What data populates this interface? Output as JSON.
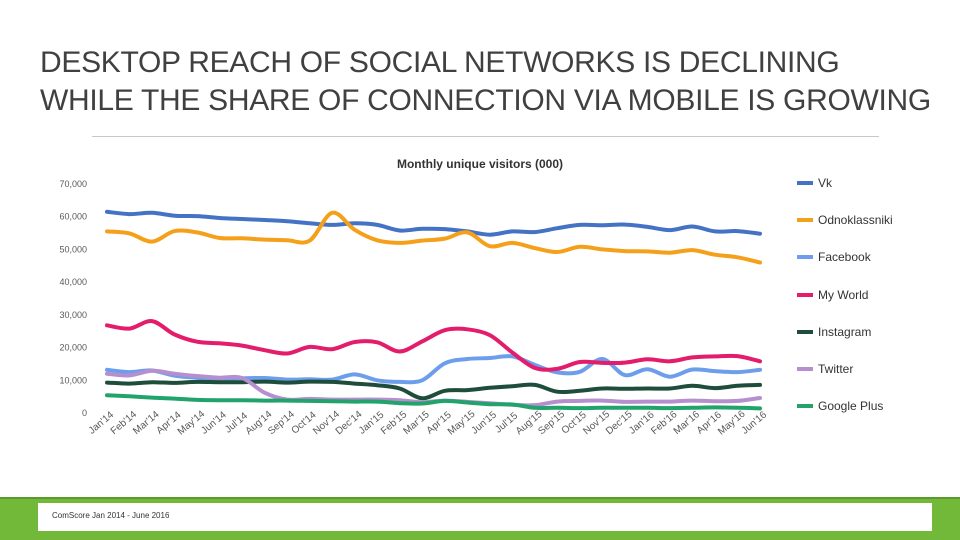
{
  "slide": {
    "title": "DESKTOP REACH OF SOCIAL NETWORKS IS DECLINING WHILE THE SHARE OF CONNECTION VIA MOBILE IS GROWING",
    "source": "ComScore Jan 2014 - June 2016"
  },
  "colors": {
    "Vk": "#4472c4",
    "Odnoklassnikі": "#f5a01a",
    "Facebook": "#6d9eeb",
    "My World": "#e31c6b",
    "Instagram": "#1e4d3b",
    "Twitter": "#b68fcf",
    "Google Plus": "#21a36b",
    "footer": "#72b93a"
  },
  "chart_data": {
    "type": "line",
    "title": "Monthly unique visitors (000)",
    "xlabel": "",
    "ylabel": "",
    "ylim": [
      0,
      70000
    ],
    "yticks": [
      "0",
      "10,000",
      "20,000",
      "30,000",
      "40,000",
      "50,000",
      "60,000",
      "70,000"
    ],
    "grid": false,
    "legend_position": "right",
    "categories": [
      "Jan'14",
      "Feb'14",
      "Mar'14",
      "Apr'14",
      "May'14",
      "Jun'14",
      "Jul'14",
      "Aug'14",
      "Sep'14",
      "Oct'14",
      "Nov'14",
      "Dec'14",
      "Jan'15",
      "Feb'15",
      "Mar'15",
      "Apr'15",
      "May'15",
      "Jun'15",
      "Jul'15",
      "Aug'15",
      "Sep'15",
      "Oct'15",
      "Nov'15",
      "Dec'15",
      "Jan'16",
      "Feb'16",
      "Mar'16",
      "Apr'16",
      "May'16",
      "Jun'16"
    ],
    "series": [
      {
        "name": "Vk",
        "values": [
          61500,
          60800,
          61200,
          60300,
          60200,
          59600,
          59300,
          59000,
          58600,
          58000,
          57500,
          58000,
          57500,
          55800,
          56300,
          56200,
          55500,
          54500,
          55500,
          55300,
          56500,
          57500,
          57400,
          57600,
          56900,
          55900,
          57000,
          55500,
          55600,
          54800
        ]
      },
      {
        "name": "Odnoklassnikі",
        "values": [
          55500,
          54900,
          52400,
          55600,
          55200,
          53500,
          53400,
          53000,
          52800,
          52700,
          61200,
          56000,
          52800,
          52000,
          52700,
          53300,
          55200,
          51000,
          52000,
          50400,
          49200,
          50800,
          50000,
          49500,
          49400,
          49000,
          49800,
          48400,
          47600,
          46000
        ]
      },
      {
        "name": "Facebook",
        "values": [
          13200,
          12500,
          13000,
          11400,
          10800,
          10500,
          10600,
          10700,
          10200,
          10300,
          10200,
          11800,
          10000,
          9500,
          10000,
          15200,
          16500,
          16800,
          17300,
          14700,
          12400,
          12600,
          16500,
          11600,
          13400,
          11100,
          13300,
          12800,
          12500,
          13200
        ]
      },
      {
        "name": "My World",
        "values": [
          26800,
          25800,
          28100,
          24000,
          21800,
          21300,
          20600,
          19200,
          18200,
          20200,
          19500,
          21700,
          21600,
          18800,
          21900,
          25300,
          25600,
          23800,
          18500,
          13800,
          13500,
          15600,
          15300,
          15400,
          16400,
          15800,
          17000,
          17300,
          17400,
          15800
        ]
      },
      {
        "name": "Instagram",
        "values": [
          9300,
          9000,
          9400,
          9200,
          9500,
          9400,
          9400,
          9600,
          9300,
          9600,
          9500,
          9000,
          8500,
          7500,
          4500,
          6800,
          7000,
          7700,
          8200,
          8600,
          6500,
          6800,
          7500,
          7400,
          7500,
          7500,
          8300,
          7600,
          8300,
          8600
        ]
      },
      {
        "name": "Twitter",
        "values": [
          12000,
          11500,
          12900,
          12000,
          11300,
          10800,
          10700,
          6200,
          4100,
          4300,
          4100,
          4100,
          4100,
          3900,
          3300,
          3800,
          3400,
          3000,
          2500,
          2400,
          3500,
          3700,
          3800,
          3400,
          3500,
          3500,
          3800,
          3600,
          3700,
          4600
        ]
      },
      {
        "name": "Google Plus",
        "values": [
          5400,
          5100,
          4700,
          4400,
          4000,
          3900,
          3900,
          3800,
          3800,
          3700,
          3600,
          3500,
          3500,
          3000,
          2900,
          3700,
          3200,
          2700,
          2600,
          1600,
          1600,
          1500,
          1600,
          1600,
          1600,
          1500,
          1600,
          1700,
          1600,
          1400
        ]
      }
    ]
  }
}
